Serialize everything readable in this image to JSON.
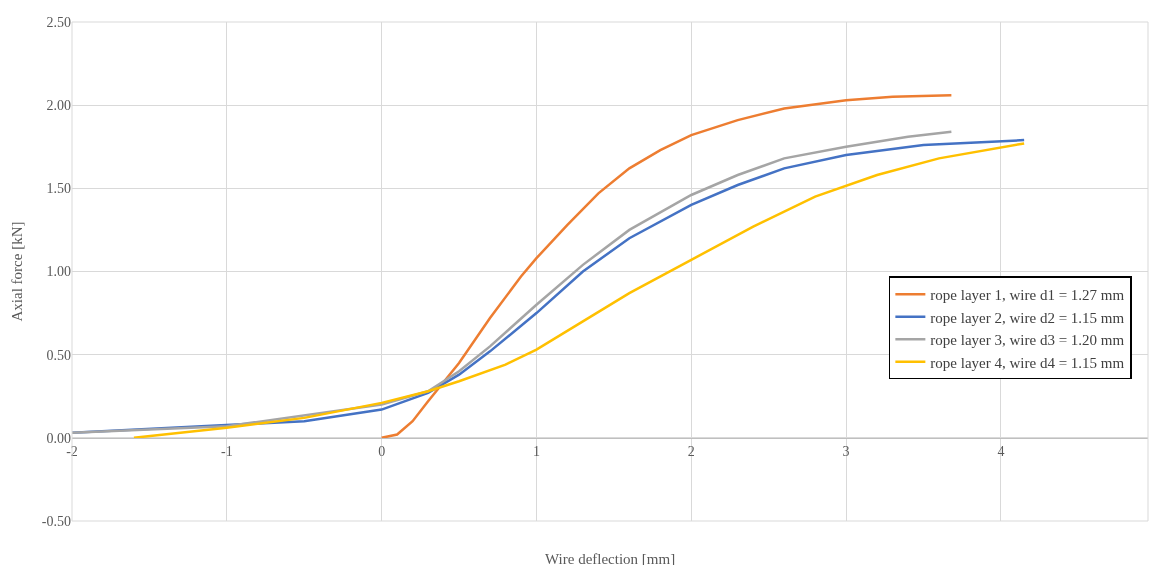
{
  "chart_data": {
    "type": "line",
    "xlabel": "Wire deflection [mm]",
    "ylabel": "Axial force [kN]",
    "xlim": [
      -2,
      4.95
    ],
    "xticks": [
      -2,
      -1,
      0,
      1,
      2,
      3,
      4
    ],
    "ylim": [
      -0.5,
      2.5
    ],
    "yticks": [
      {
        "value": -0.5,
        "label": "-0.50"
      },
      {
        "value": 0,
        "label": "0.00"
      },
      {
        "value": 0.5,
        "label": "0.50"
      },
      {
        "value": 1,
        "label": "1.00"
      },
      {
        "value": 1.5,
        "label": "1.50"
      },
      {
        "value": 2,
        "label": "2.00"
      },
      {
        "value": 2.5,
        "label": "2.50"
      }
    ],
    "grid": true,
    "legend": "right",
    "marker": "none",
    "line_style": "solid",
    "series": [
      {
        "name": "rope layer 1, wire d1 = 1.27 mm",
        "color": "#ed7d31",
        "x": [
          0,
          0.1,
          0.2,
          0.3,
          0.5,
          0.7,
          0.9,
          1.0,
          1.2,
          1.4,
          1.6,
          1.8,
          2.0,
          2.3,
          2.6,
          3.0,
          3.3,
          3.68
        ],
        "values": [
          0,
          0.02,
          0.1,
          0.22,
          0.45,
          0.72,
          0.97,
          1.08,
          1.28,
          1.47,
          1.62,
          1.73,
          1.82,
          1.91,
          1.98,
          2.03,
          2.05,
          2.06
        ]
      },
      {
        "name": "rope layer 2, wire d2 = 1.15 mm",
        "color": "#4472c4",
        "x": [
          -2,
          -0.5,
          0,
          0.3,
          0.5,
          0.7,
          1.0,
          1.3,
          1.6,
          2.0,
          2.3,
          2.6,
          3.0,
          3.5,
          4.15
        ],
        "values": [
          0.03,
          0.1,
          0.17,
          0.27,
          0.38,
          0.52,
          0.75,
          1.0,
          1.2,
          1.4,
          1.52,
          1.62,
          1.7,
          1.76,
          1.79
        ]
      },
      {
        "name": "rope layer 3, wire d3 = 1.20 mm",
        "color": "#a5a5a5",
        "x": [
          -2,
          -1,
          0,
          0.3,
          0.5,
          0.7,
          1.0,
          1.3,
          1.6,
          2.0,
          2.3,
          2.6,
          3.0,
          3.4,
          3.68
        ],
        "values": [
          0.03,
          0.07,
          0.2,
          0.28,
          0.4,
          0.55,
          0.8,
          1.04,
          1.25,
          1.46,
          1.58,
          1.68,
          1.75,
          1.81,
          1.84
        ]
      },
      {
        "name": "rope layer 4, wire d4 = 1.15 mm",
        "color": "#ffc000",
        "x": [
          -1.6,
          -1.3,
          -1,
          -0.5,
          0,
          0.3,
          0.5,
          0.8,
          1.0,
          1.3,
          1.6,
          2.0,
          2.4,
          2.8,
          3.2,
          3.6,
          4.15
        ],
        "values": [
          0,
          0.03,
          0.06,
          0.12,
          0.21,
          0.28,
          0.34,
          0.44,
          0.53,
          0.7,
          0.87,
          1.07,
          1.27,
          1.45,
          1.58,
          1.68,
          1.77
        ]
      }
    ]
  }
}
